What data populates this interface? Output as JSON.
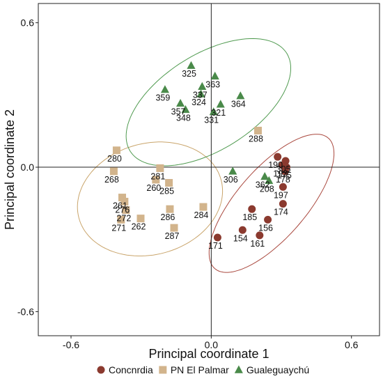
{
  "chart_data": {
    "type": "scatter",
    "xlabel": "Principal coordinate 1",
    "ylabel": "Principal coordinate 2",
    "xlim": [
      -0.74,
      0.72
    ],
    "ylim": [
      -0.7,
      0.68
    ],
    "xticks": [
      -0.6,
      0.0,
      0.6
    ],
    "xtick_labels": [
      "-0.6",
      "0.0",
      "0.6"
    ],
    "yticks": [
      -0.6,
      0.0,
      0.6
    ],
    "ytick_labels": [
      "-0.6",
      "0.0",
      "0.6"
    ],
    "reference_lines": {
      "x": 0,
      "y": 0
    },
    "grid": false,
    "legend_position": "bottom",
    "series": [
      {
        "name": "Concnrdia",
        "marker": "circle",
        "color": "#8b3a2f",
        "points": [
          {
            "label": "190",
            "x": 0.284,
            "y": 0.043
          },
          {
            "label": "305",
            "x": 0.318,
            "y": 0.026
          },
          {
            "label": "193",
            "x": 0.305,
            "y": 0.008
          },
          {
            "label": "175",
            "x": 0.322,
            "y": 0.0
          },
          {
            "label": "178",
            "x": 0.316,
            "y": -0.017
          },
          {
            "label": "197",
            "x": 0.307,
            "y": -0.082
          },
          {
            "label": "174",
            "x": 0.307,
            "y": -0.152
          },
          {
            "label": "185",
            "x": 0.174,
            "y": -0.174
          },
          {
            "label": "156",
            "x": 0.242,
            "y": -0.218
          },
          {
            "label": "154",
            "x": 0.134,
            "y": -0.261
          },
          {
            "label": "161",
            "x": 0.207,
            "y": -0.283
          },
          {
            "label": "171",
            "x": 0.027,
            "y": -0.292
          }
        ]
      },
      {
        "name": "PN El Palmar",
        "marker": "square",
        "color": "#d2b48c",
        "points": [
          {
            "label": "280",
            "x": -0.405,
            "y": 0.07
          },
          {
            "label": "268",
            "x": -0.417,
            "y": -0.017
          },
          {
            "label": "281",
            "x": -0.219,
            "y": -0.004
          },
          {
            "label": "260",
            "x": -0.237,
            "y": -0.052
          },
          {
            "label": "285",
            "x": -0.181,
            "y": -0.065
          },
          {
            "label": "261",
            "x": -0.381,
            "y": -0.126
          },
          {
            "label": "276",
            "x": -0.371,
            "y": -0.143
          },
          {
            "label": "272",
            "x": -0.365,
            "y": -0.178
          },
          {
            "label": "286",
            "x": -0.177,
            "y": -0.174
          },
          {
            "label": "284",
            "x": -0.034,
            "y": -0.165
          },
          {
            "label": "271",
            "x": -0.386,
            "y": -0.218
          },
          {
            "label": "262",
            "x": -0.302,
            "y": -0.213
          },
          {
            "label": "287",
            "x": -0.159,
            "y": -0.252
          },
          {
            "label": "288",
            "x": 0.2,
            "y": 0.152
          }
        ]
      },
      {
        "name": "Gualeguaychú",
        "marker": "triangle",
        "color": "#4a8a4a",
        "points": [
          {
            "label": "325",
            "x": -0.086,
            "y": 0.422
          },
          {
            "label": "363",
            "x": 0.016,
            "y": 0.378
          },
          {
            "label": "337",
            "x": -0.039,
            "y": 0.335
          },
          {
            "label": "359",
            "x": -0.198,
            "y": 0.322
          },
          {
            "label": "357",
            "x": -0.132,
            "y": 0.265
          },
          {
            "label": "324",
            "x": -0.044,
            "y": 0.304
          },
          {
            "label": "321",
            "x": 0.04,
            "y": 0.261
          },
          {
            "label": "364",
            "x": 0.125,
            "y": 0.296
          },
          {
            "label": "348",
            "x": -0.11,
            "y": 0.239
          },
          {
            "label": "331",
            "x": 0.01,
            "y": 0.23
          },
          {
            "label": "306",
            "x": 0.092,
            "y": -0.017
          },
          {
            "label": "362",
            "x": 0.229,
            "y": -0.039
          },
          {
            "label": "208",
            "x": 0.247,
            "y": -0.056
          }
        ]
      }
    ],
    "ellipses": [
      {
        "group": "Concnrdia",
        "color": "#a9473d",
        "cx": 0.258,
        "cy": -0.15,
        "rx": 0.37,
        "ry": 0.148,
        "angle_deg": -49
      },
      {
        "group": "PN El Palmar",
        "color": "#c9a46a",
        "cx": -0.262,
        "cy": -0.132,
        "rx": 0.315,
        "ry": 0.238,
        "angle_deg": -15
      },
      {
        "group": "Gualeguaychú",
        "color": "#4f9a4f",
        "cx": -0.012,
        "cy": 0.27,
        "rx": 0.395,
        "ry": 0.205,
        "angle_deg": -32
      }
    ]
  },
  "legend": {
    "items": [
      {
        "label": "Concnrdia",
        "marker": "circle",
        "color": "#8b3a2f"
      },
      {
        "label": "PN El Palmar",
        "marker": "square",
        "color": "#d2b48c"
      },
      {
        "label": "Gualeguaychú",
        "marker": "triangle",
        "color": "#4a8a4a"
      }
    ]
  }
}
